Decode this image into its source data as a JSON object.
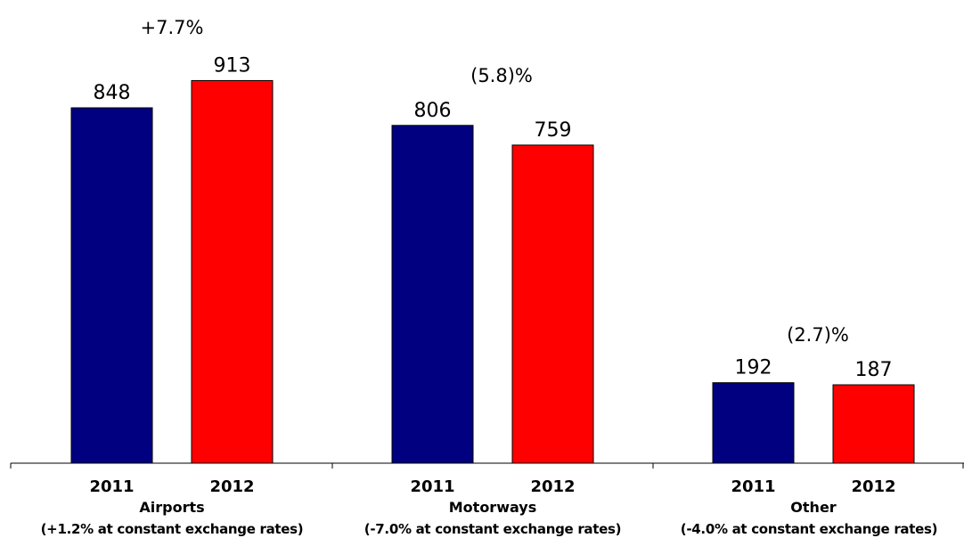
{
  "chart_data": {
    "type": "bar",
    "ylim": [
      0,
      1000
    ],
    "grid": false,
    "legend": "none",
    "colors": {
      "2011": "#000080",
      "2012": "#ff0000"
    },
    "groups": [
      {
        "name": "Airports",
        "subtitle": "(+1.2% at constant exchange rates)",
        "change": "+7.7%",
        "bars": [
          {
            "year": "2011",
            "value": 848
          },
          {
            "year": "2012",
            "value": 913
          }
        ]
      },
      {
        "name": "Motorways",
        "subtitle": "(-7.0% at constant exchange rates)",
        "change": "(5.8)%",
        "bars": [
          {
            "year": "2011",
            "value": 806
          },
          {
            "year": "2012",
            "value": 759
          }
        ]
      },
      {
        "name": "Other",
        "subtitle": "(-4.0% at constant exchange rates)",
        "change": "(2.7)%",
        "bars": [
          {
            "year": "2011",
            "value": 192
          },
          {
            "year": "2012",
            "value": 187
          }
        ]
      }
    ]
  }
}
